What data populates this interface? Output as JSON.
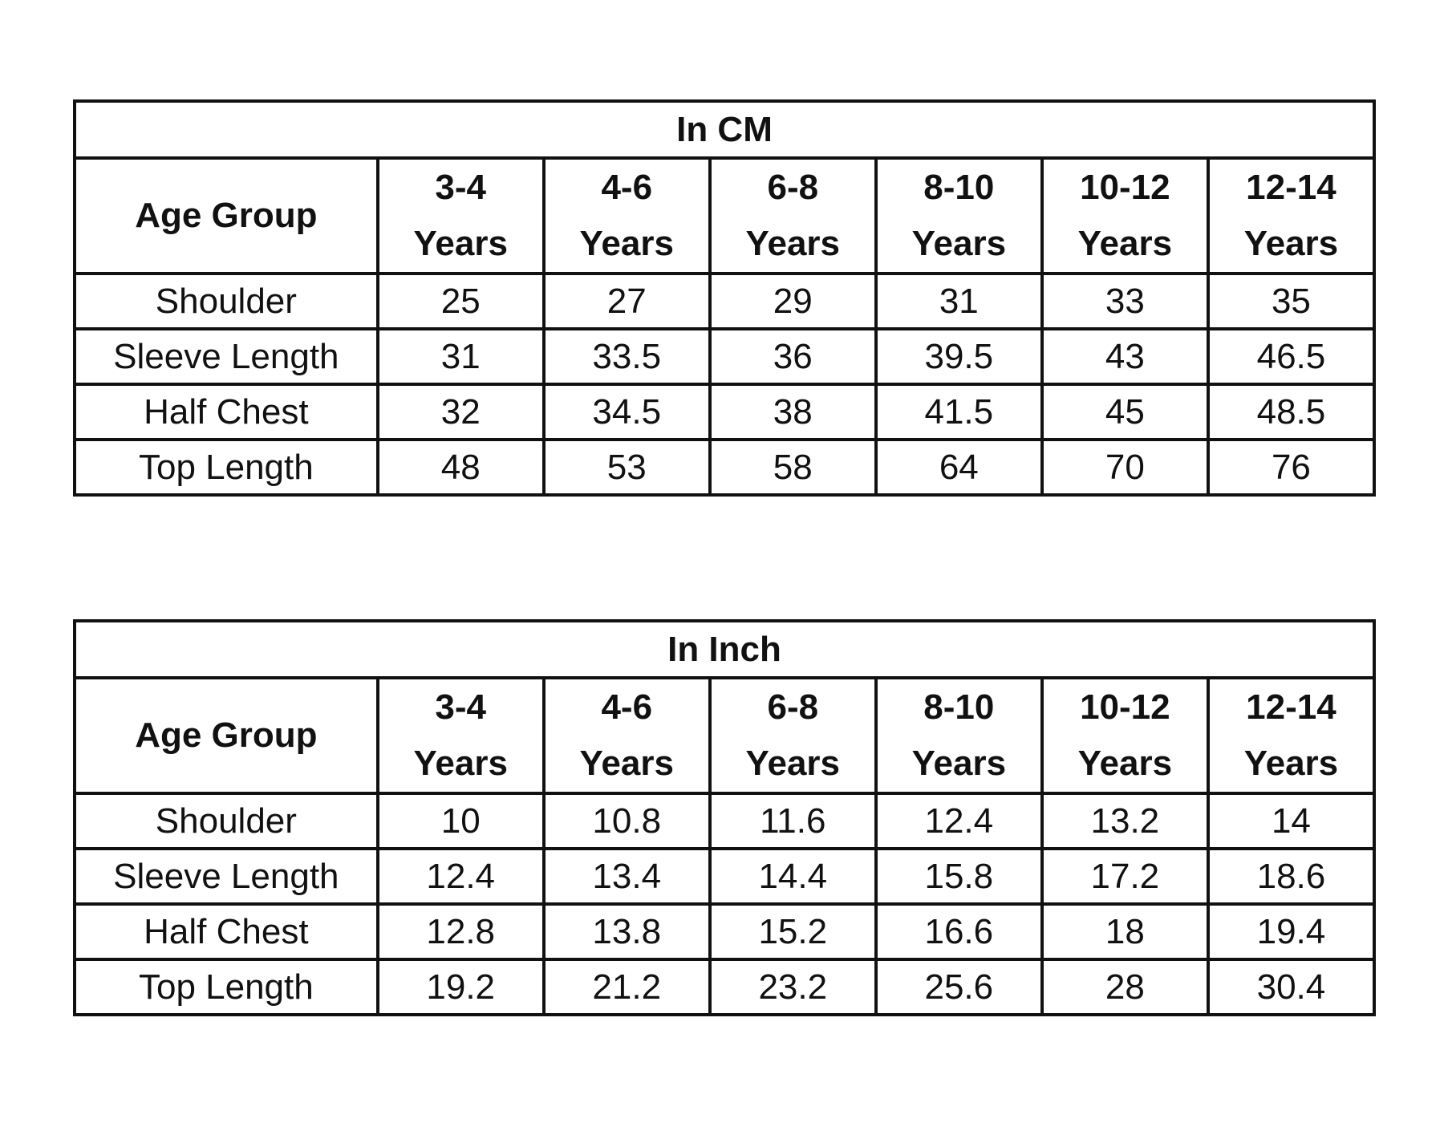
{
  "tables": [
    {
      "title": "In CM",
      "header_label": "Age Group",
      "columns": [
        {
          "range": "3-4",
          "unit": "Years"
        },
        {
          "range": "4-6",
          "unit": "Years"
        },
        {
          "range": "6-8",
          "unit": "Years"
        },
        {
          "range": "8-10",
          "unit": "Years"
        },
        {
          "range": "10-12",
          "unit": "Years"
        },
        {
          "range": "12-14",
          "unit": "Years"
        }
      ],
      "rows": [
        {
          "label": "Shoulder",
          "values": [
            "25",
            "27",
            "29",
            "31",
            "33",
            "35"
          ]
        },
        {
          "label": "Sleeve Length",
          "values": [
            "31",
            "33.5",
            "36",
            "39.5",
            "43",
            "46.5"
          ]
        },
        {
          "label": "Half Chest",
          "values": [
            "32",
            "34.5",
            "38",
            "41.5",
            "45",
            "48.5"
          ]
        },
        {
          "label": "Top Length",
          "values": [
            "48",
            "53",
            "58",
            "64",
            "70",
            "76"
          ]
        }
      ]
    },
    {
      "title": "In Inch",
      "header_label": "Age Group",
      "columns": [
        {
          "range": "3-4",
          "unit": "Years"
        },
        {
          "range": "4-6",
          "unit": "Years"
        },
        {
          "range": "6-8",
          "unit": "Years"
        },
        {
          "range": "8-10",
          "unit": "Years"
        },
        {
          "range": "10-12",
          "unit": "Years"
        },
        {
          "range": "12-14",
          "unit": "Years"
        }
      ],
      "rows": [
        {
          "label": "Shoulder",
          "values": [
            "10",
            "10.8",
            "11.6",
            "12.4",
            "13.2",
            "14"
          ]
        },
        {
          "label": "Sleeve Length",
          "values": [
            "12.4",
            "13.4",
            "14.4",
            "15.8",
            "17.2",
            "18.6"
          ]
        },
        {
          "label": "Half Chest",
          "values": [
            "12.8",
            "13.8",
            "15.2",
            "16.6",
            "18",
            "19.4"
          ]
        },
        {
          "label": "Top Length",
          "values": [
            "19.2",
            "21.2",
            "23.2",
            "25.6",
            "28",
            "30.4"
          ]
        }
      ]
    }
  ]
}
